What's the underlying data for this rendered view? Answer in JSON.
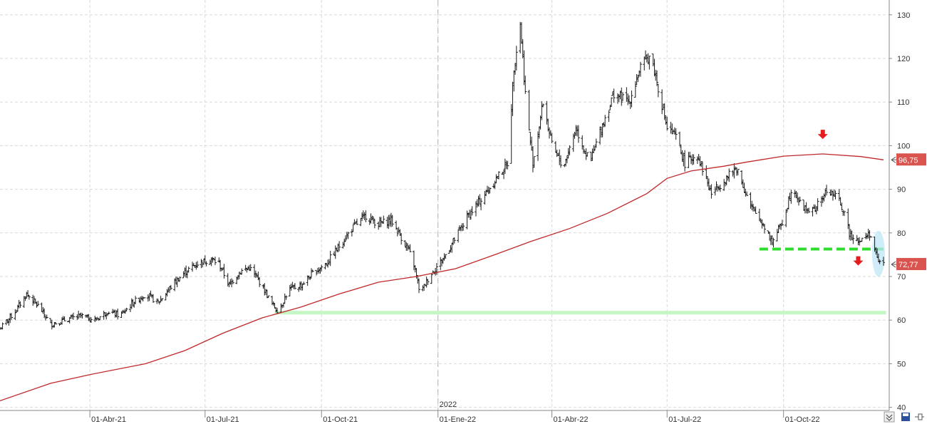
{
  "colors": {
    "bars": "#1a1a1a",
    "moving_average": "#c0282a",
    "support_dashed": "#2ddc2d",
    "support_solid": "#c4f7c4",
    "arrow": "#e41e1e",
    "badge": "#d9534f",
    "highlight": "#bfe6f7",
    "grid": "#d9d9d9"
  },
  "toolbar": {
    "collapse_icon": "double-chevron-down-icon",
    "save_icon": "floppy-disk-icon",
    "pin_icon": "pin-icon"
  },
  "chart_data": {
    "type": "ohlc",
    "title": "",
    "xlabel": "",
    "ylabel": "",
    "x_range": [
      "2021-01-20",
      "2022-12-19"
    ],
    "ylim": [
      40,
      132
    ],
    "y_ticks": [
      40,
      50,
      60,
      70,
      80,
      90,
      100,
      110,
      120,
      130
    ],
    "grid": true,
    "x_ticks": [
      {
        "date": "2021-04-01",
        "label": "01-Abr-21"
      },
      {
        "date": "2021-07-01",
        "label": "01-Jul-21"
      },
      {
        "date": "2021-10-01",
        "label": "01-Oct-21"
      },
      {
        "date": "2022-01-01",
        "label": "01-Ene-22"
      },
      {
        "date": "2022-04-01",
        "label": "01-Abr-22"
      },
      {
        "date": "2022-07-01",
        "label": "01-Jul-22"
      },
      {
        "date": "2022-10-01",
        "label": "01-Oct-22"
      }
    ],
    "year_marker": {
      "date": "2022-01-01",
      "label": "2022"
    },
    "price_close": [
      [
        "2021-01-20",
        58
      ],
      [
        "2021-02-01",
        62
      ],
      [
        "2021-02-10",
        66
      ],
      [
        "2021-02-20",
        63
      ],
      [
        "2021-03-01",
        59
      ],
      [
        "2021-03-12",
        60
      ],
      [
        "2021-03-25",
        61
      ],
      [
        "2021-04-05",
        60
      ],
      [
        "2021-04-15",
        62
      ],
      [
        "2021-04-25",
        61
      ],
      [
        "2021-05-05",
        64
      ],
      [
        "2021-05-15",
        66
      ],
      [
        "2021-05-25",
        64
      ],
      [
        "2021-06-05",
        68
      ],
      [
        "2021-06-15",
        71
      ],
      [
        "2021-06-25",
        73
      ],
      [
        "2021-07-05",
        74
      ],
      [
        "2021-07-12",
        73
      ],
      [
        "2021-07-20",
        68
      ],
      [
        "2021-07-28",
        71
      ],
      [
        "2021-08-05",
        72
      ],
      [
        "2021-08-15",
        68
      ],
      [
        "2021-08-22",
        64
      ],
      [
        "2021-08-28",
        62
      ],
      [
        "2021-09-05",
        67
      ],
      [
        "2021-09-15",
        68
      ],
      [
        "2021-09-25",
        71
      ],
      [
        "2021-10-05",
        73
      ],
      [
        "2021-10-15",
        77
      ],
      [
        "2021-10-25",
        81
      ],
      [
        "2021-11-05",
        84
      ],
      [
        "2021-11-15",
        82
      ],
      [
        "2021-11-25",
        83
      ],
      [
        "2021-12-05",
        78
      ],
      [
        "2021-12-12",
        74
      ],
      [
        "2021-12-18",
        66
      ],
      [
        "2021-12-25",
        70
      ],
      [
        "2022-01-05",
        74
      ],
      [
        "2022-01-15",
        79
      ],
      [
        "2022-01-25",
        84
      ],
      [
        "2022-02-05",
        88
      ],
      [
        "2022-02-15",
        92
      ],
      [
        "2022-02-25",
        96
      ],
      [
        "2022-03-02",
        118
      ],
      [
        "2022-03-07",
        128
      ],
      [
        "2022-03-12",
        108
      ],
      [
        "2022-03-17",
        96
      ],
      [
        "2022-03-25",
        110
      ],
      [
        "2022-04-01",
        100
      ],
      [
        "2022-04-10",
        95
      ],
      [
        "2022-04-20",
        104
      ],
      [
        "2022-05-01",
        96
      ],
      [
        "2022-05-10",
        104
      ],
      [
        "2022-05-20",
        112
      ],
      [
        "2022-06-01",
        110
      ],
      [
        "2022-06-10",
        118
      ],
      [
        "2022-06-18",
        121
      ],
      [
        "2022-06-25",
        112
      ],
      [
        "2022-07-01",
        104
      ],
      [
        "2022-07-08",
        102
      ],
      [
        "2022-07-15",
        96
      ],
      [
        "2022-07-25",
        98
      ],
      [
        "2022-08-05",
        89
      ],
      [
        "2022-08-15",
        92
      ],
      [
        "2022-08-25",
        95
      ],
      [
        "2022-09-05",
        86
      ],
      [
        "2022-09-15",
        82
      ],
      [
        "2022-09-22",
        78
      ],
      [
        "2022-10-01",
        83
      ],
      [
        "2022-10-08",
        91
      ],
      [
        "2022-10-15",
        86
      ],
      [
        "2022-10-25",
        85
      ],
      [
        "2022-11-05",
        90
      ],
      [
        "2022-11-15",
        87
      ],
      [
        "2022-11-22",
        80
      ],
      [
        "2022-12-01",
        78
      ],
      [
        "2022-12-08",
        80
      ],
      [
        "2022-12-14",
        74
      ],
      [
        "2022-12-19",
        72.77
      ]
    ],
    "moving_average": [
      [
        "2021-01-20",
        41.5
      ],
      [
        "2021-03-01",
        45.5
      ],
      [
        "2021-04-01",
        47.5
      ],
      [
        "2021-05-15",
        50
      ],
      [
        "2021-06-15",
        53
      ],
      [
        "2021-07-15",
        57
      ],
      [
        "2021-08-15",
        60.5
      ],
      [
        "2021-09-15",
        63
      ],
      [
        "2021-10-15",
        66
      ],
      [
        "2021-11-15",
        68.7
      ],
      [
        "2021-12-15",
        70
      ],
      [
        "2022-01-15",
        71.8
      ],
      [
        "2022-02-15",
        75
      ],
      [
        "2022-03-15",
        78
      ],
      [
        "2022-04-15",
        81
      ],
      [
        "2022-05-15",
        84.5
      ],
      [
        "2022-06-15",
        89
      ],
      [
        "2022-07-01",
        92.5
      ],
      [
        "2022-07-20",
        94.2
      ],
      [
        "2022-08-15",
        95.3
      ],
      [
        "2022-09-01",
        96.2
      ],
      [
        "2022-10-01",
        97.6
      ],
      [
        "2022-11-01",
        98.1
      ],
      [
        "2022-12-01",
        97.5
      ],
      [
        "2022-12-19",
        96.75
      ]
    ],
    "annotations": {
      "last_price": {
        "value": 72.77,
        "label": "72,77"
      },
      "ma_value": {
        "value": 96.75,
        "label": "96,75"
      },
      "support_dashed": {
        "value": 76.3,
        "from": "2022-09-12",
        "to": "2022-12-20"
      },
      "support_solid": {
        "value": 61.7,
        "from": "2021-08-25",
        "to": "2022-12-21"
      },
      "arrows": [
        {
          "date": "2022-11-01",
          "value": 102.5
        },
        {
          "date": "2022-11-29",
          "value": 73.5
        }
      ],
      "highlight": {
        "date": "2022-12-15",
        "value_low": 70,
        "value_high": 80.5
      }
    }
  }
}
